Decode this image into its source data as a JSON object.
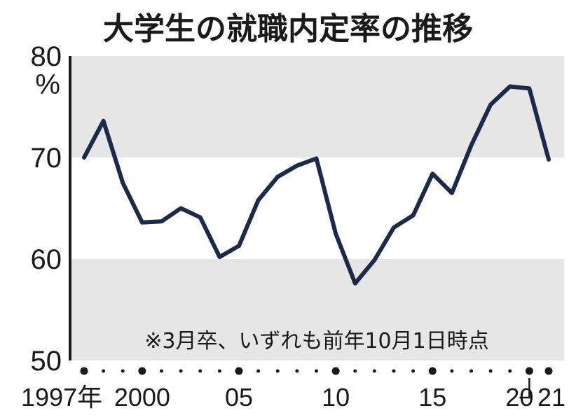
{
  "chart_data": {
    "type": "line",
    "title": "大学生の就職内定率の推移",
    "ylabel": "",
    "xlabel": "",
    "y_unit": "%",
    "ylim": [
      50,
      80
    ],
    "y_ticks": [
      "50",
      "60",
      "70",
      "80"
    ],
    "x_start_year": 1997,
    "x_end_year": 2021,
    "x_tick_labels": [
      {
        "year": 1997,
        "label": "1997年"
      },
      {
        "year": 2000,
        "label": "2000"
      },
      {
        "year": 2005,
        "label": "05"
      },
      {
        "year": 2010,
        "label": "10"
      },
      {
        "year": 2015,
        "label": "15"
      },
      {
        "year": 2020,
        "label": "20"
      },
      {
        "year": 2021,
        "label": "21"
      }
    ],
    "series": [
      {
        "color": "#1b2a4a",
        "x": [
          1997,
          1998,
          1999,
          2000,
          2001,
          2002,
          2003,
          2004,
          2005,
          2006,
          2007,
          2008,
          2009,
          2010,
          2011,
          2012,
          2013,
          2014,
          2015,
          2016,
          2017,
          2018,
          2019,
          2020,
          2021
        ],
        "values": [
          70.0,
          73.6,
          67.5,
          63.6,
          63.7,
          65.0,
          64.1,
          60.2,
          61.3,
          65.8,
          68.1,
          69.2,
          69.9,
          62.5,
          57.6,
          59.9,
          63.1,
          64.3,
          68.4,
          66.5,
          71.2,
          75.2,
          77.0,
          76.8,
          69.8
        ]
      }
    ],
    "annotation": "※3月卒、いずれも前年10月1日時点",
    "grid_bands": "alternating grey bands between 50–60 and 70–80"
  },
  "colors": {
    "band": "#e6e6e6",
    "line": "#1b2a4a",
    "axis": "#1a1a1a"
  }
}
